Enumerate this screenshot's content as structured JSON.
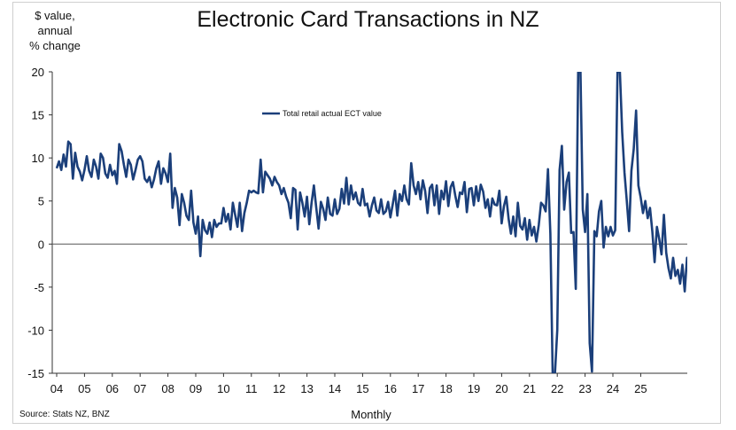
{
  "chart_data": {
    "type": "line",
    "title": "Electronic Card Transactions in NZ",
    "ylabel": "$ value, annual % change",
    "ylabel_lines": [
      "$ value,",
      "annual",
      "% change"
    ],
    "xlabel": "Monthly",
    "source": "Source: Stats NZ, BNZ",
    "ylim": [
      -15,
      20
    ],
    "yticks": [
      20,
      15,
      10,
      5,
      0,
      -5,
      -10,
      -15
    ],
    "xticks": [
      "04",
      "05",
      "06",
      "07",
      "08",
      "09",
      "10",
      "11",
      "12",
      "13",
      "14",
      "15",
      "16",
      "17",
      "18",
      "19",
      "20",
      "21",
      "22",
      "23",
      "24",
      "25"
    ],
    "grid": false,
    "legend_position": "top-center",
    "line_color": "#1b3f7a",
    "series": [
      {
        "name": "Total retail actual ECT value",
        "x_start": "2004-01",
        "frequency": "monthly",
        "values": [
          8.8,
          9.6,
          8.6,
          10.4,
          9.0,
          11.9,
          11.6,
          7.6,
          10.6,
          9.0,
          8.4,
          7.4,
          8.6,
          10.2,
          8.5,
          7.8,
          9.8,
          9.0,
          7.6,
          10.5,
          10.0,
          8.2,
          7.7,
          9.2,
          8.0,
          8.5,
          7.0,
          11.6,
          10.8,
          9.2,
          7.8,
          9.8,
          9.2,
          7.5,
          8.6,
          9.8,
          10.2,
          9.6,
          7.6,
          7.2,
          7.8,
          6.6,
          7.5,
          8.8,
          9.6,
          7.0,
          8.8,
          8.2,
          7.2,
          10.5,
          4.2,
          6.5,
          5.4,
          2.2,
          5.8,
          4.8,
          3.3,
          2.8,
          6.2,
          2.5,
          1.2,
          3.2,
          -1.4,
          2.8,
          1.6,
          1.2,
          2.5,
          0.8,
          2.8,
          2.0,
          2.4,
          2.4,
          4.2,
          2.6,
          3.5,
          1.7,
          4.8,
          3.4,
          2.0,
          4.8,
          1.5,
          3.6,
          4.8,
          6.2,
          6.0,
          6.2,
          6.0,
          5.9,
          9.8,
          6.0,
          8.4,
          8.0,
          7.6,
          6.8,
          7.8,
          7.2,
          6.8,
          5.8,
          6.5,
          5.5,
          4.8,
          3.0,
          6.5,
          6.3,
          1.7,
          6.0,
          4.8,
          3.2,
          5.5,
          2.3,
          4.8,
          6.8,
          4.2,
          1.8,
          4.9,
          4.1,
          2.8,
          5.4,
          3.5,
          3.3,
          5.2,
          3.5,
          4.1,
          6.4,
          4.7,
          7.7,
          4.6,
          6.8,
          5.2,
          6.0,
          4.8,
          4.5,
          6.4,
          4.5,
          4.7,
          3.2,
          4.5,
          5.4,
          3.9,
          3.6,
          5.2,
          3.5,
          3.8,
          4.9,
          3.1,
          4.6,
          6.2,
          3.3,
          5.8,
          5.0,
          6.8,
          5.2,
          4.6,
          9.4,
          6.8,
          5.8,
          7.2,
          5.2,
          7.4,
          6.2,
          3.6,
          6.5,
          6.9,
          4.5,
          6.8,
          3.5,
          6.2,
          5.2,
          7.3,
          4.4,
          6.6,
          7.2,
          5.6,
          4.3,
          6.0,
          5.8,
          7.2,
          3.7,
          6.4,
          6.5,
          4.5,
          6.7,
          5.0,
          6.9,
          6.1,
          4.2,
          5.2,
          3.2,
          5.3,
          4.6,
          4.5,
          6.2,
          2.4,
          4.4,
          5.5,
          2.9,
          1.2,
          3.2,
          0.9,
          4.8,
          2.1,
          1.7,
          3.0,
          0.5,
          2.8,
          1.0,
          2.0,
          0.3,
          2.2,
          4.8,
          4.5,
          3.8,
          8.7,
          1.2,
          -15.0,
          -15.0,
          -10.0,
          8.6,
          11.4,
          4.0,
          7.2,
          8.3,
          1.3,
          1.4,
          -5.2,
          20.0,
          20.0,
          4.0,
          1.4,
          5.8,
          -11.5,
          -14.8,
          1.5,
          0.9,
          3.8,
          5.0,
          -0.4,
          2.0,
          0.9,
          2.0,
          1.0,
          1.6,
          20.0,
          20.0,
          13.0,
          8.3,
          5.0,
          1.5,
          8.5,
          11.0,
          15.5,
          6.8,
          5.4,
          3.6,
          5.0,
          3.0,
          4.2,
          1.5,
          -2.1,
          2.0,
          0.6,
          -1.2,
          3.4,
          -1.0,
          -2.8,
          -4.0,
          -1.6,
          -3.7,
          -3.0,
          -4.6,
          -2.4,
          -5.5,
          -1.6,
          -2.5,
          -1.2,
          -0.5,
          -4.2,
          -1.6
        ]
      }
    ]
  }
}
